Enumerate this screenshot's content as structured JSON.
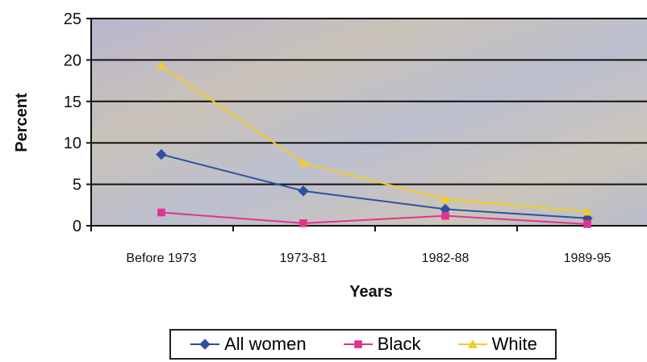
{
  "chart_data": {
    "type": "line",
    "categories": [
      "Before 1973",
      "1973-81",
      "1982-88",
      "1989-95"
    ],
    "series": [
      {
        "name": "All women",
        "values": [
          8.6,
          4.2,
          2.0,
          0.9
        ],
        "color": "#2f4f9f",
        "marker": "diamond"
      },
      {
        "name": "Black",
        "values": [
          1.6,
          0.3,
          1.2,
          0.2
        ],
        "color": "#e0338f",
        "marker": "square"
      },
      {
        "name": "White",
        "values": [
          19.3,
          7.6,
          3.2,
          1.7
        ],
        "color": "#f2cc2b",
        "marker": "triangle"
      }
    ],
    "xlabel": "Years",
    "ylabel": "Percent",
    "ylim": [
      0,
      25
    ],
    "yticks": [
      "0",
      "5",
      "10",
      "15",
      "20",
      "25"
    ],
    "grid": true,
    "legend_position": "bottom"
  }
}
